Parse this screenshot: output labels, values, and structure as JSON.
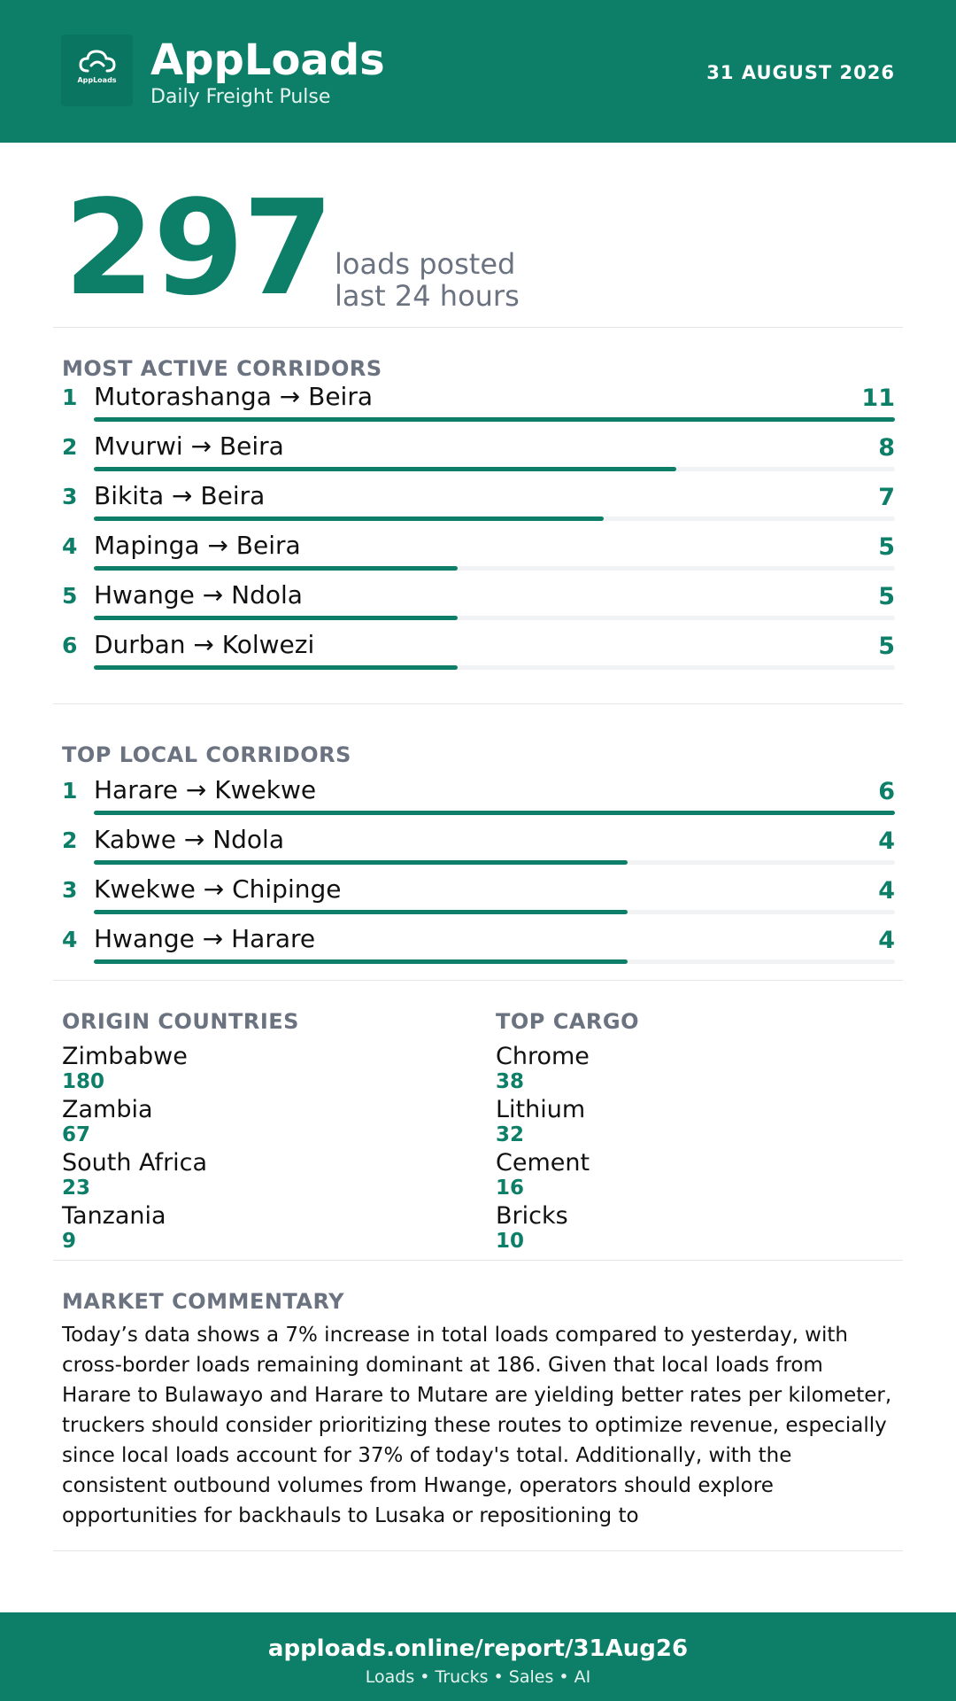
{
  "colors": {
    "accent": "#0d7f68",
    "muted": "#6b7280",
    "track": "#f1f2f4"
  },
  "header": {
    "logo_text": "AppLoads",
    "logo_icon": "cloud-icon",
    "app_name": "AppLoads",
    "subtitle": "Daily Freight Pulse",
    "date": "31 AUGUST 2026"
  },
  "hero": {
    "count": "297",
    "line1": "loads posted",
    "line2": "last 24 hours"
  },
  "active_corridors": {
    "title": "MOST ACTIVE CORRIDORS",
    "max": 11,
    "items": [
      {
        "rank": "1",
        "route": "Mutorashanga → Beira",
        "count": 11
      },
      {
        "rank": "2",
        "route": "Mvurwi → Beira",
        "count": 8
      },
      {
        "rank": "3",
        "route": "Bikita → Beira",
        "count": 7
      },
      {
        "rank": "4",
        "route": "Mapinga → Beira",
        "count": 5
      },
      {
        "rank": "5",
        "route": "Hwange → Ndola",
        "count": 5
      },
      {
        "rank": "6",
        "route": "Durban → Kolwezi",
        "count": 5
      }
    ]
  },
  "local_corridors": {
    "title": "TOP LOCAL CORRIDORS",
    "max": 6,
    "items": [
      {
        "rank": "1",
        "route": "Harare → Kwekwe",
        "count": 6
      },
      {
        "rank": "2",
        "route": "Kabwe → Ndola",
        "count": 4
      },
      {
        "rank": "3",
        "route": "Kwekwe → Chipinge",
        "count": 4
      },
      {
        "rank": "4",
        "route": "Hwange → Harare",
        "count": 4
      }
    ]
  },
  "origin_countries": {
    "title": "ORIGIN COUNTRIES",
    "items": [
      {
        "name": "Zimbabwe",
        "value": "180"
      },
      {
        "name": "Zambia",
        "value": "67"
      },
      {
        "name": "South Africa",
        "value": "23"
      },
      {
        "name": "Tanzania",
        "value": "9"
      }
    ]
  },
  "top_cargo": {
    "title": "TOP CARGO",
    "items": [
      {
        "name": "Chrome",
        "value": "38"
      },
      {
        "name": "Lithium",
        "value": "32"
      },
      {
        "name": "Cement",
        "value": "16"
      },
      {
        "name": "Bricks",
        "value": "10"
      }
    ]
  },
  "commentary": {
    "title": "MARKET COMMENTARY",
    "text": "Today’s data shows a 7% increase in total loads compared to yesterday, with cross-border loads remaining dominant at 186. Given that local loads from Harare to Bulawayo and Harare to Mutare are yielding better rates per kilometer, truckers should consider prioritizing these routes to optimize revenue, especially since local loads account for 37% of today's total. Additionally, with the consistent outbound volumes from Hwange, operators should explore opportunities for backhauls to Lusaka or repositioning to"
  },
  "footer": {
    "url": "apploads.online/report/31Aug26",
    "tagline": "Loads • Trucks • Sales • AI"
  }
}
